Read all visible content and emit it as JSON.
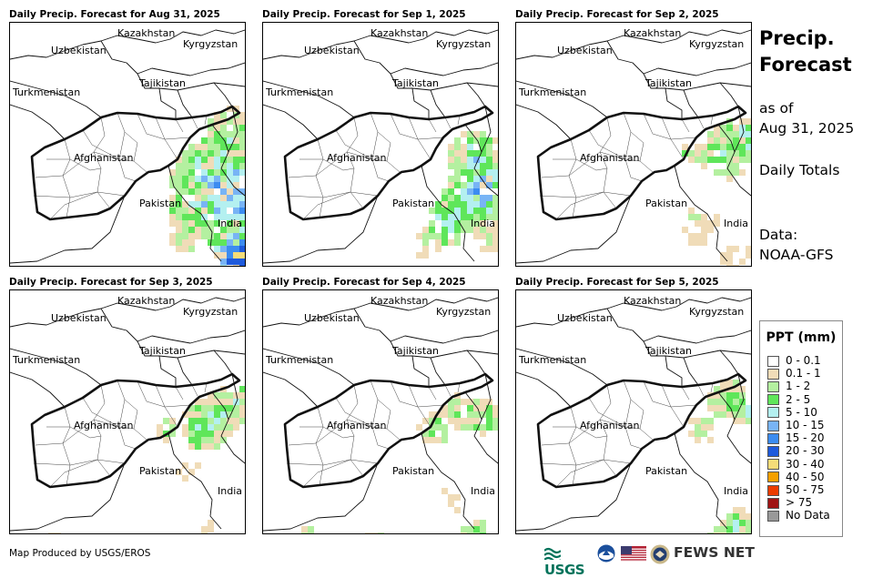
{
  "panels": [
    {
      "title": "Daily Precip. Forecast for Aug 31, 2025",
      "rain_regions": [
        "east-afghanistan border",
        "north pakistan",
        "pakistan-india border"
      ],
      "precip_level": "high"
    },
    {
      "title": "Daily Precip. Forecast for Sep 1, 2025",
      "rain_regions": [
        "north pakistan",
        "central pakistan"
      ],
      "precip_level": "moderate"
    },
    {
      "title": "Daily Precip. Forecast for Sep 2, 2025",
      "rain_regions": [
        "north pakistan"
      ],
      "precip_level": "light"
    },
    {
      "title": "Daily Precip. Forecast for Sep 3, 2025",
      "rain_regions": [
        "north pakistan",
        "east afghanistan"
      ],
      "precip_level": "moderate"
    },
    {
      "title": "Daily Precip. Forecast for Sep 4, 2025",
      "rain_regions": [
        "north pakistan"
      ],
      "precip_level": "light"
    },
    {
      "title": "Daily Precip. Forecast for Sep 5, 2025",
      "rain_regions": [
        "north pakistan",
        "south-east pakistan"
      ],
      "precip_level": "light"
    }
  ],
  "map_labels": {
    "kazakhstan": "Kazakhstan",
    "uzbekistan": "Uzbekistan",
    "kyrgyzstan": "Kyrgyzstan",
    "tajikistan": "Tajikistan",
    "turkmenistan": "Turkmenistan",
    "afghanistan": "Afghanistan",
    "pakistan": "Pakistan",
    "india": "India"
  },
  "side_panel": {
    "title_line1": "Precip.",
    "title_line2": "Forecast",
    "as_of": "as of",
    "date": "Aug 31, 2025",
    "totals": "Daily Totals",
    "data_label": "Data:",
    "data_source": "NOAA-GFS"
  },
  "legend": {
    "title": "PPT (mm)",
    "items": [
      {
        "label": "0 - 0.1",
        "color": "#ffffff"
      },
      {
        "label": "0.1 - 1",
        "color": "#f0dcb8"
      },
      {
        "label": "1 - 2",
        "color": "#b4f0a0"
      },
      {
        "label": "2 - 5",
        "color": "#5fe65a"
      },
      {
        "label": "5 - 10",
        "color": "#b4f0f0"
      },
      {
        "label": "10 - 15",
        "color": "#78b4f5"
      },
      {
        "label": "15 - 20",
        "color": "#3c8cf0"
      },
      {
        "label": "20 - 30",
        "color": "#1e5adc"
      },
      {
        "label": "30 - 40",
        "color": "#f5dc78"
      },
      {
        "label": "40 - 50",
        "color": "#f5a000"
      },
      {
        "label": "50 - 75",
        "color": "#eb3c00"
      },
      {
        "label": "> 75",
        "color": "#a01414"
      },
      {
        "label": "No Data",
        "color": "#999999"
      }
    ]
  },
  "footer": {
    "credit": "Map Produced by USGS/EROS",
    "usgs": "USGS",
    "fews": "FEWS NET"
  }
}
